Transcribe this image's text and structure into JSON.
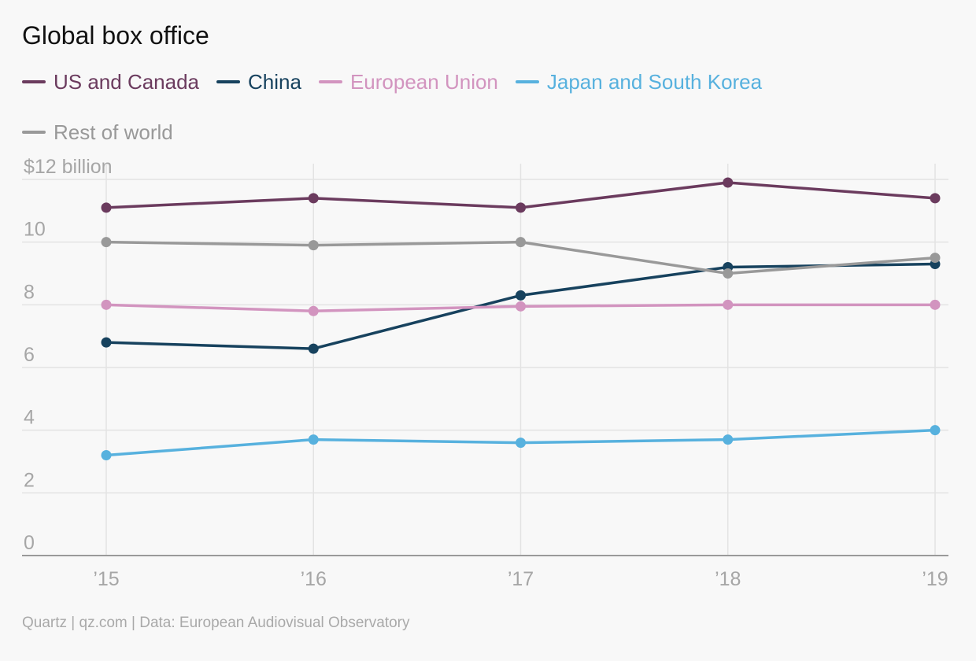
{
  "chart_data": {
    "type": "line",
    "title": "Global box office",
    "categories": [
      "’15",
      "’16",
      "’17",
      "’18",
      "’19"
    ],
    "ylabel_unit": "$12 billion",
    "y_ticks": [
      "0",
      "2",
      "4",
      "6",
      "8",
      "10",
      "$12 billion"
    ],
    "ylim": [
      0,
      12
    ],
    "grid": true,
    "legend_position": "top-left",
    "series": [
      {
        "name": "US and Canada",
        "color": "#6b3b5e",
        "values": [
          11.1,
          11.4,
          11.1,
          11.9,
          11.4
        ]
      },
      {
        "name": "China",
        "color": "#17425e",
        "values": [
          6.8,
          6.6,
          8.3,
          9.2,
          9.3
        ]
      },
      {
        "name": "European Union",
        "color": "#d294bf",
        "values": [
          8.0,
          7.8,
          7.95,
          8.0,
          8.0
        ]
      },
      {
        "name": "Japan and South Korea",
        "color": "#57b1de",
        "values": [
          3.2,
          3.7,
          3.6,
          3.7,
          4.0
        ]
      },
      {
        "name": "Rest of world",
        "color": "#999999",
        "values": [
          10.0,
          9.9,
          10.0,
          9.0,
          9.5
        ]
      }
    ]
  },
  "footer": "Quartz | qz.com | Data: European Audiovisual Observatory"
}
